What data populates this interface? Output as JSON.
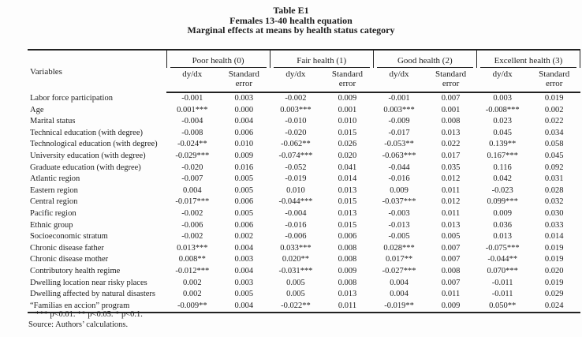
{
  "title": {
    "line1": "Table E1",
    "line2": "Females 13-40 health equation",
    "line3": "Marginal effects at means by health status category"
  },
  "table": {
    "variables_header": "Variables",
    "groups": [
      {
        "label": "Poor health (0)"
      },
      {
        "label": "Fair health (1)"
      },
      {
        "label": "Good health (2)"
      },
      {
        "label": "Excellent health (3)"
      }
    ],
    "subheaders": {
      "dydx": "dy/dx",
      "se": "Standard error"
    },
    "rows": [
      {
        "variable": "Labor force participation",
        "values": [
          "-0.001",
          "0.003",
          "-0.002",
          "0.009",
          "-0.001",
          "0.007",
          "0.003",
          "0.019"
        ]
      },
      {
        "variable": "Age",
        "values": [
          "0.001***",
          "0.000",
          "0.003***",
          "0.001",
          "0.003***",
          "0.001",
          "-0.008***",
          "0.002"
        ]
      },
      {
        "variable": "Marital status",
        "values": [
          "-0.004",
          "0.004",
          "-0.010",
          "0.010",
          "-0.009",
          "0.008",
          "0.023",
          "0.022"
        ]
      },
      {
        "variable": "Technical education (with degree)",
        "values": [
          "-0.008",
          "0.006",
          "-0.020",
          "0.015",
          "-0.017",
          "0.013",
          "0.045",
          "0.034"
        ]
      },
      {
        "variable": "Technological education (with degree)",
        "values": [
          "-0.024**",
          "0.010",
          "-0.062**",
          "0.026",
          "-0.053**",
          "0.022",
          "0.139**",
          "0.058"
        ]
      },
      {
        "variable": "University education (with degree)",
        "values": [
          "-0.029***",
          "0.009",
          "-0.074***",
          "0.020",
          "-0.063***",
          "0.017",
          "0.167***",
          "0.045"
        ]
      },
      {
        "variable": "Graduate education (with degree)",
        "values": [
          "-0.020",
          "0.016",
          "-0.052",
          "0.041",
          "-0.044",
          "0.035",
          "0.116",
          "0.092"
        ]
      },
      {
        "variable": "Atlantic region",
        "values": [
          "-0.007",
          "0.005",
          "-0.019",
          "0.014",
          "-0.016",
          "0.012",
          "0.042",
          "0.031"
        ]
      },
      {
        "variable": "Eastern region",
        "values": [
          "0.004",
          "0.005",
          "0.010",
          "0.013",
          "0.009",
          "0.011",
          "-0.023",
          "0.028"
        ]
      },
      {
        "variable": "Central region",
        "values": [
          "-0.017***",
          "0.006",
          "-0.044***",
          "0.015",
          "-0.037***",
          "0.012",
          "0.099***",
          "0.032"
        ]
      },
      {
        "variable": "Pacific region",
        "values": [
          "-0.002",
          "0.005",
          "-0.004",
          "0.013",
          "-0.003",
          "0.011",
          "0.009",
          "0.030"
        ]
      },
      {
        "variable": "Ethnic group",
        "values": [
          "-0.006",
          "0.006",
          "-0.016",
          "0.015",
          "-0.013",
          "0.013",
          "0.036",
          "0.033"
        ]
      },
      {
        "variable": "Socioeconomic stratum",
        "values": [
          "-0.002",
          "0.002",
          "-0.006",
          "0.006",
          "-0.005",
          "0.005",
          "0.013",
          "0.014"
        ]
      },
      {
        "variable": "Chronic disease father",
        "values": [
          "0.013***",
          "0.004",
          "0.033***",
          "0.008",
          "0.028***",
          "0.007",
          "-0.075***",
          "0.019"
        ]
      },
      {
        "variable": "Chronic disease mother",
        "values": [
          "0.008**",
          "0.003",
          "0.020**",
          "0.008",
          "0.017**",
          "0.007",
          "-0.044**",
          "0.019"
        ]
      },
      {
        "variable": "Contributory health regime",
        "values": [
          "-0.012***",
          "0.004",
          "-0.031***",
          "0.009",
          "-0.027***",
          "0.008",
          "0.070***",
          "0.020"
        ]
      },
      {
        "variable": "Dwelling location near risky places",
        "values": [
          "0.002",
          "0.003",
          "0.005",
          "0.008",
          "0.004",
          "0.007",
          "-0.011",
          "0.019"
        ]
      },
      {
        "variable": "Dwelling affected by natural disasters",
        "values": [
          "0.002",
          "0.005",
          "0.005",
          "0.013",
          "0.004",
          "0.011",
          "-0.011",
          "0.029"
        ]
      },
      {
        "variable": "“Familias en accion” program",
        "values": [
          "-0.009**",
          "0.004",
          "-0.022**",
          "0.011",
          "-0.019**",
          "0.009",
          "0.050**",
          "0.024"
        ]
      }
    ]
  },
  "footnotes": {
    "significance": "*** p<0.01. ** p<0.05. * p<0.1.",
    "source": "Source: Authors’ calculations."
  }
}
